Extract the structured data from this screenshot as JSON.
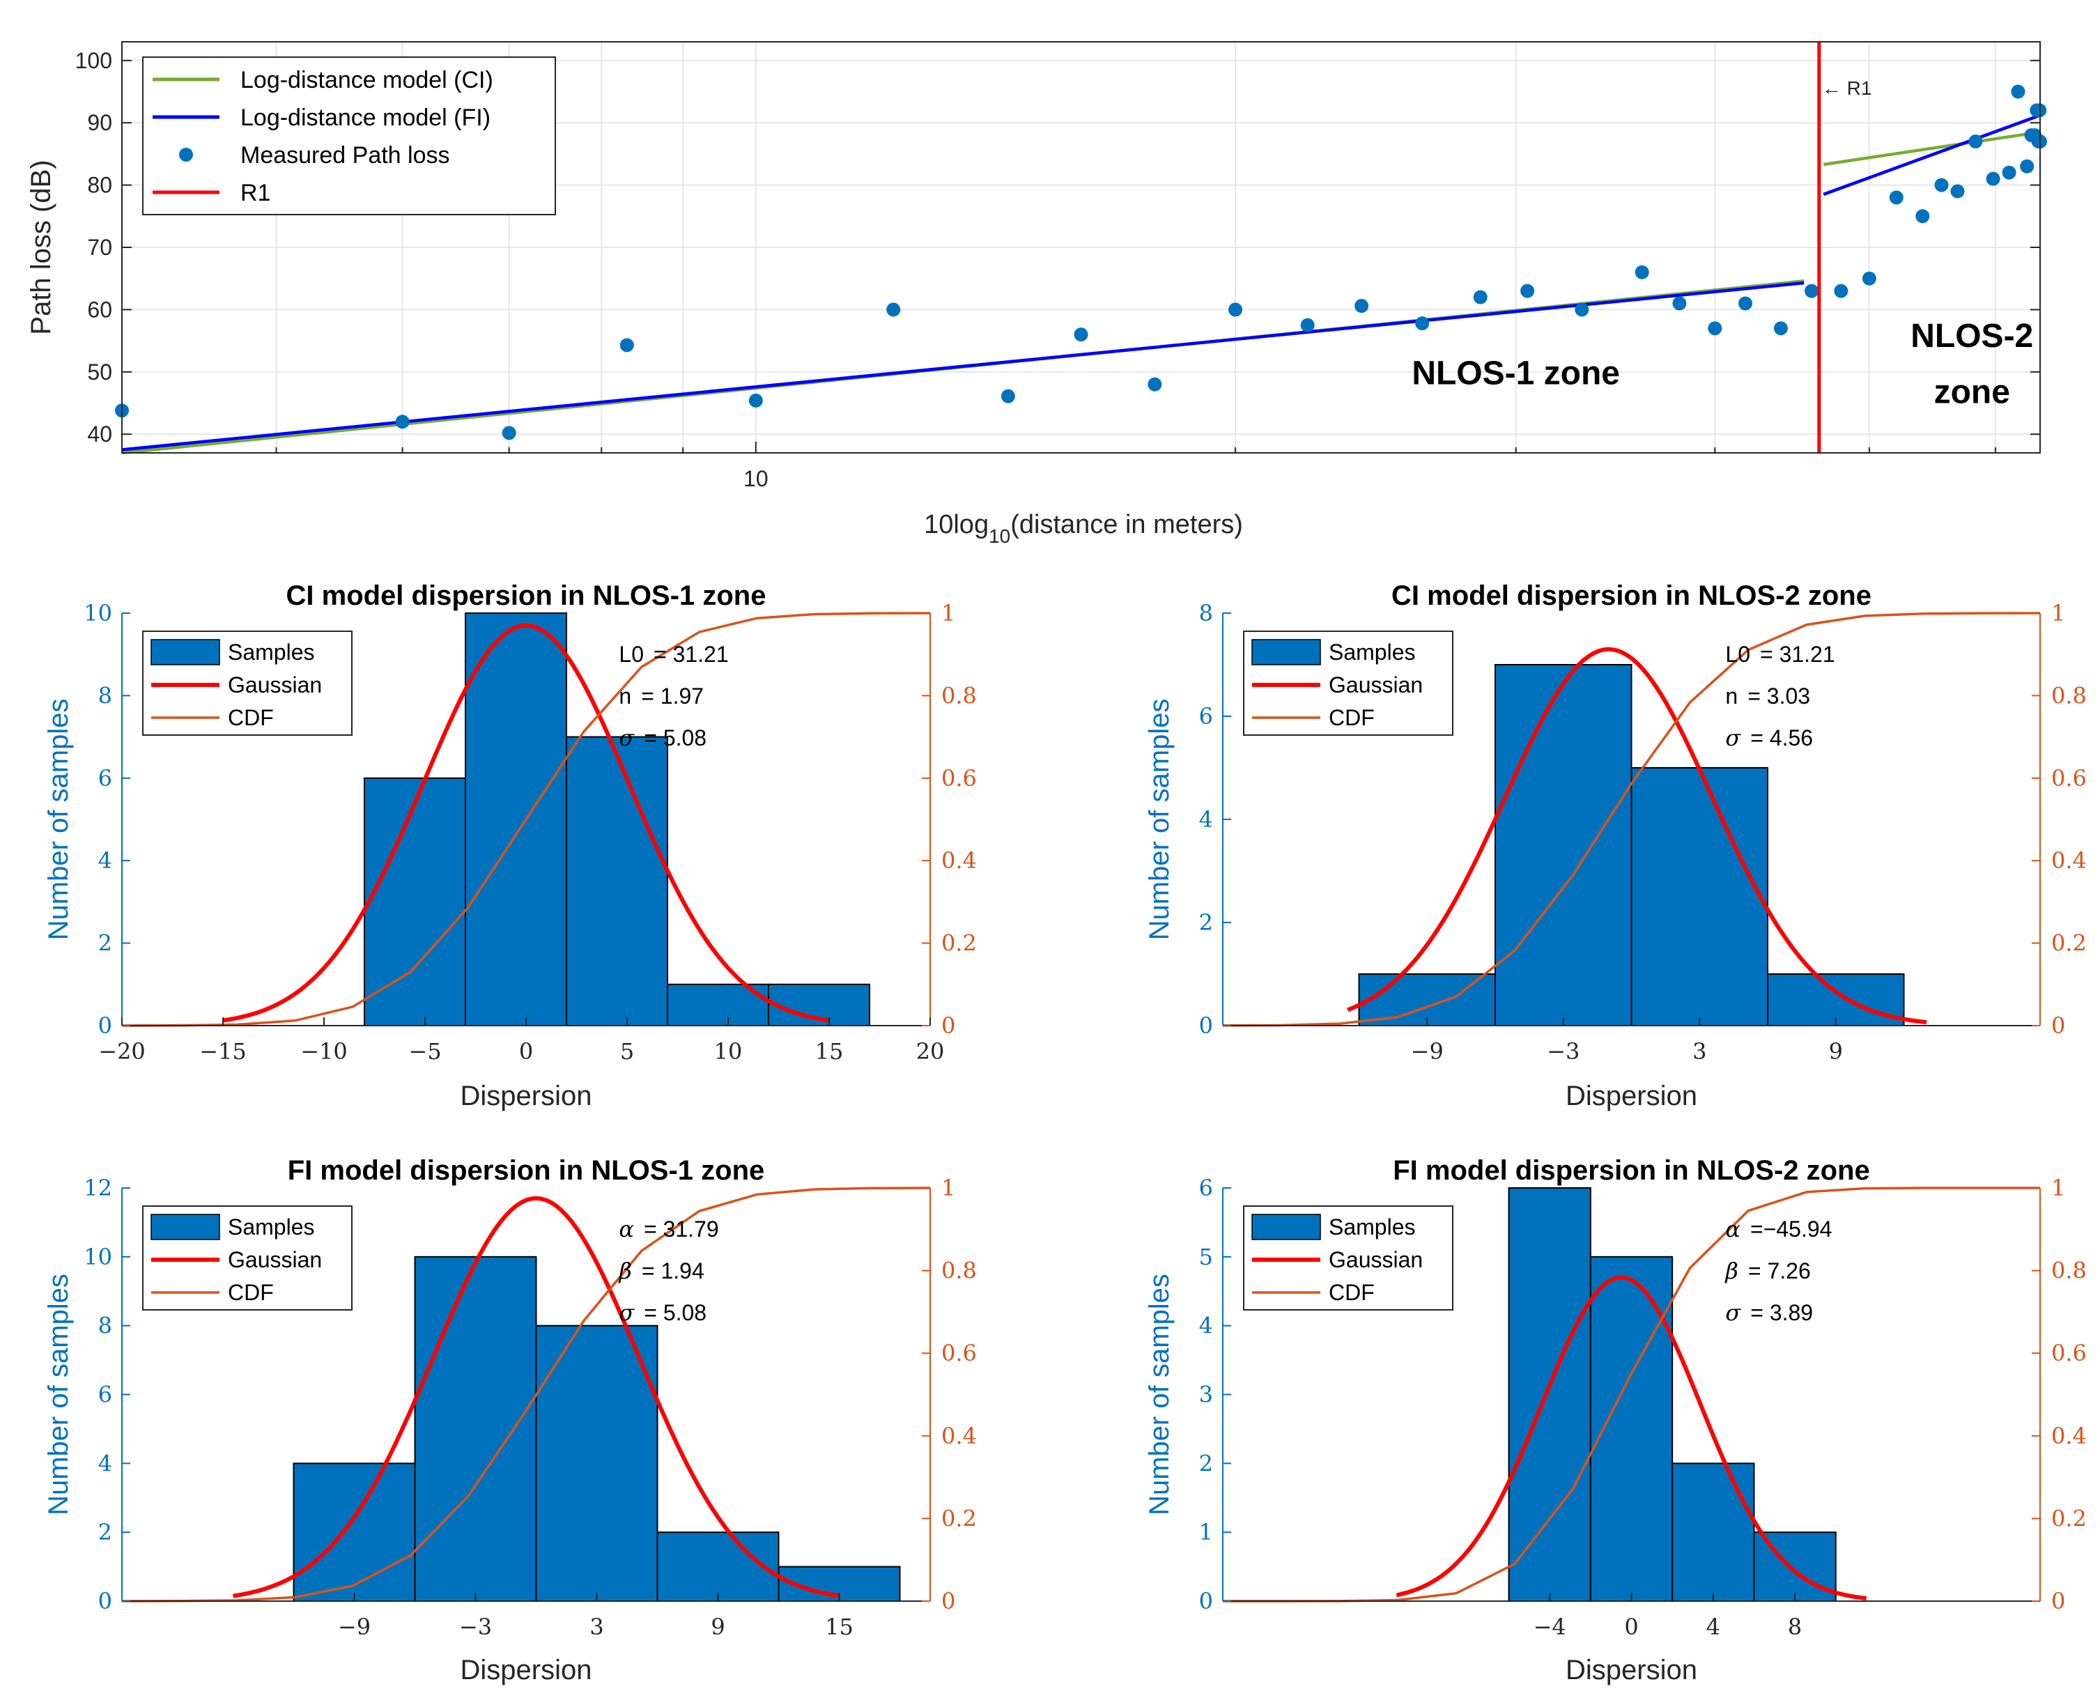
{
  "colors": {
    "ci": "#77AC30",
    "fi": "#0000FF",
    "measured": "#0072BD",
    "r1": "#FF0000",
    "bar": "#0072BD",
    "gauss": "#FF0000",
    "cdf": "#D95319",
    "grid": "#E6E6E6",
    "axis": "#262626"
  },
  "chart_data": [
    {
      "id": "pathloss",
      "type": "scatter",
      "title": "",
      "xlabel_prefix": "10log",
      "xlabel_sub": "10",
      "xlabel_suffix": "(distance in meters)",
      "ylabel": "Path loss (dB)",
      "xscale": "log",
      "xlim": [
        4.0,
        64.0
      ],
      "ylim": [
        37,
        103
      ],
      "xticks": [
        {
          "v": 10,
          "label": "10"
        }
      ],
      "xgrid_minor": [
        5,
        6,
        7,
        8,
        9,
        20,
        30,
        40,
        50,
        60
      ],
      "yticks": [
        40,
        50,
        60,
        70,
        80,
        90,
        100
      ],
      "grid": true,
      "legend": {
        "position": "top-left",
        "entries": [
          {
            "label": "Log-distance model (CI)",
            "kind": "line",
            "color": "ci"
          },
          {
            "label": "Log-distance model (FI)",
            "kind": "line",
            "color": "fi"
          },
          {
            "label": "Measured Path loss",
            "kind": "marker",
            "color": "measured"
          },
          {
            "label": "R1",
            "kind": "line",
            "color": "r1"
          }
        ]
      },
      "series": [
        {
          "name": "Log-distance model (CI)",
          "kind": "line",
          "color": "ci",
          "segments": [
            [
              [
                4.0,
                37.0
              ],
              [
                45.5,
                64.6
              ]
            ],
            [
              [
                46.8,
                83.3
              ],
              [
                64.0,
                88.5
              ]
            ]
          ]
        },
        {
          "name": "Log-distance model (FI)",
          "kind": "line",
          "color": "fi",
          "segments": [
            [
              [
                4.0,
                37.5
              ],
              [
                45.5,
                64.3
              ]
            ],
            [
              [
                46.8,
                78.5
              ],
              [
                64.0,
                91.2
              ]
            ]
          ]
        },
        {
          "name": "Measured Path loss",
          "kind": "scatter",
          "color": "measured",
          "points": [
            [
              4.0,
              43.8
            ],
            [
              6.0,
              42.0
            ],
            [
              7.0,
              40.2
            ],
            [
              8.3,
              54.3
            ],
            [
              10.0,
              45.4
            ],
            [
              12.2,
              60.0
            ],
            [
              14.4,
              46.1
            ],
            [
              16.0,
              56.0
            ],
            [
              17.8,
              48.0
            ],
            [
              20.0,
              60.0
            ],
            [
              22.2,
              57.5
            ],
            [
              24.0,
              60.6
            ],
            [
              26.2,
              57.8
            ],
            [
              28.5,
              62.0
            ],
            [
              30.5,
              63.0
            ],
            [
              33.0,
              60.0
            ],
            [
              36.0,
              66.0
            ],
            [
              38.0,
              61.0
            ],
            [
              40.0,
              57.0
            ],
            [
              41.8,
              61.0
            ],
            [
              44.0,
              57.0
            ],
            [
              46.0,
              63.0
            ],
            [
              48.0,
              63.0
            ],
            [
              50.0,
              65.0
            ],
            [
              52.0,
              78.0
            ],
            [
              54.0,
              75.0
            ],
            [
              55.5,
              80.0
            ],
            [
              56.8,
              79.0
            ],
            [
              58.3,
              87.0
            ],
            [
              59.8,
              81.0
            ],
            [
              61.2,
              82.0
            ],
            [
              62.0,
              95.0
            ],
            [
              62.8,
              83.0
            ],
            [
              63.2,
              88.0
            ],
            [
              63.5,
              88.0
            ],
            [
              63.7,
              92.0
            ],
            [
              63.85,
              87.0
            ],
            [
              63.95,
              92.0
            ],
            [
              64.0,
              87.0
            ]
          ]
        }
      ],
      "r1": {
        "x": 46.5,
        "label": "← R1"
      },
      "annotations": [
        {
          "text": "NLOS-1 zone",
          "x": 30.0,
          "y": 48
        },
        {
          "text": "NLOS-2",
          "x": 58.0,
          "y": 54
        },
        {
          "text": "zone",
          "x": 58.0,
          "y": 45
        }
      ]
    },
    {
      "id": "hist-ci-1",
      "type": "bar",
      "title": "CI model dispersion in NLOS-1 zone",
      "xlabel": "Dispersion",
      "ylabel": "Number of samples",
      "xlim": [
        -20,
        20
      ],
      "ylim_left": [
        0,
        10
      ],
      "ylim_right": [
        0,
        1
      ],
      "xticks": [
        -20,
        -15,
        -10,
        -5,
        0,
        5,
        10,
        15,
        20
      ],
      "xtick_labels": [
        "−20",
        "−15",
        "−10",
        "−5",
        "0",
        "5",
        "10",
        "15",
        "20"
      ],
      "yticks_left": [
        0,
        2,
        4,
        6,
        8,
        10
      ],
      "yticks_right": [
        0,
        0.2,
        0.4,
        0.6,
        0.8,
        1
      ],
      "bins": [
        [
          -8,
          -3
        ],
        [
          -3,
          2
        ],
        [
          2,
          7
        ],
        [
          7,
          12
        ],
        [
          12,
          17
        ]
      ],
      "counts": [
        6,
        10,
        7,
        1,
        1
      ],
      "gauss": {
        "mu": 0,
        "sigma": 5.08,
        "peak": 9.7,
        "range": [
          -15,
          15
        ]
      },
      "cdf": {
        "mu": 0,
        "sigma": 5.08,
        "range": [
          -20,
          20
        ]
      },
      "legend": [
        "Samples",
        "Gaussian",
        "CDF"
      ],
      "params": [
        {
          "name": "L0",
          "sym": false,
          "value": "= 31.21"
        },
        {
          "name": "n",
          "sym": false,
          "value": "=  1.97"
        },
        {
          "name": "σ",
          "sym": true,
          "value": "= 5.08"
        }
      ]
    },
    {
      "id": "hist-ci-2",
      "type": "bar",
      "title": "CI model dispersion in NLOS-2 zone",
      "xlabel": "Dispersion",
      "ylabel": "Number of samples",
      "xlim": [
        -18,
        18
      ],
      "ylim_left": [
        0,
        8
      ],
      "ylim_right": [
        0,
        1
      ],
      "xticks": [
        -9,
        -3,
        3,
        9
      ],
      "xtick_labels": [
        "−9",
        "−3",
        "3",
        "9"
      ],
      "yticks_left": [
        0,
        2,
        4,
        6,
        8
      ],
      "yticks_right": [
        0,
        0.2,
        0.4,
        0.6,
        0.8,
        1
      ],
      "bins": [
        [
          -12,
          -6
        ],
        [
          -6,
          0
        ],
        [
          0,
          6
        ],
        [
          6,
          12
        ]
      ],
      "counts": [
        1,
        7,
        5,
        1
      ],
      "gauss": {
        "mu": -1,
        "sigma": 4.56,
        "peak": 7.3,
        "range": [
          -12.5,
          13
        ]
      },
      "cdf": {
        "mu": -1,
        "sigma": 4.56,
        "range": [
          -18,
          18
        ]
      },
      "legend": [
        "Samples",
        "Gaussian",
        "CDF"
      ],
      "params": [
        {
          "name": "L0",
          "sym": false,
          "value": "= 31.21"
        },
        {
          "name": "n",
          "sym": false,
          "value": "=  3.03"
        },
        {
          "name": "σ",
          "sym": true,
          "value": "= 4.56"
        }
      ]
    },
    {
      "id": "hist-fi-1",
      "type": "bar",
      "title": "FI model dispersion in NLOS-1 zone",
      "xlabel": "Dispersion",
      "ylabel": "Number of samples",
      "xlim": [
        -20.5,
        19.5
      ],
      "ylim_left": [
        0,
        12
      ],
      "ylim_right": [
        0,
        1
      ],
      "xticks": [
        -9,
        -3,
        3,
        9,
        15
      ],
      "xtick_labels": [
        "−9",
        "−3",
        "3",
        "9",
        "15"
      ],
      "yticks_left": [
        0,
        2,
        4,
        6,
        8,
        10,
        12
      ],
      "yticks_right": [
        0,
        0.2,
        0.4,
        0.6,
        0.8,
        1
      ],
      "bins": [
        [
          -12,
          -6
        ],
        [
          -6,
          0
        ],
        [
          0,
          6
        ],
        [
          6,
          12
        ],
        [
          12,
          18
        ]
      ],
      "counts": [
        4,
        10,
        8,
        2,
        1
      ],
      "gauss": {
        "mu": 0,
        "sigma": 5.08,
        "peak": 11.7,
        "range": [
          -15,
          15
        ]
      },
      "cdf": {
        "mu": 0,
        "sigma": 5.08,
        "range": [
          -20.5,
          19.5
        ]
      },
      "legend": [
        "Samples",
        "Gaussian",
        "CDF"
      ],
      "params": [
        {
          "name": "α",
          "sym": true,
          "value": "= 31.79"
        },
        {
          "name": "β",
          "sym": true,
          "value": "=  1.94"
        },
        {
          "name": "σ",
          "sym": true,
          "value": "= 5.08"
        }
      ]
    },
    {
      "id": "hist-fi-2",
      "type": "bar",
      "title": "FI model dispersion in NLOS-2 zone",
      "xlabel": "Dispersion",
      "ylabel": "Number of samples",
      "xlim": [
        -20,
        20
      ],
      "ylim_left": [
        0,
        6
      ],
      "ylim_right": [
        0,
        1
      ],
      "xticks": [
        -4,
        0,
        4,
        8
      ],
      "xtick_labels": [
        "−4",
        "0",
        "4",
        "8"
      ],
      "yticks_left": [
        0,
        1,
        2,
        3,
        4,
        5,
        6
      ],
      "yticks_right": [
        0,
        0.2,
        0.4,
        0.6,
        0.8,
        1
      ],
      "bins": [
        [
          -6,
          -2
        ],
        [
          -2,
          2
        ],
        [
          2,
          6
        ],
        [
          6,
          10
        ]
      ],
      "counts": [
        6,
        5,
        2,
        1
      ],
      "gauss": {
        "mu": -0.5,
        "sigma": 3.89,
        "peak": 4.7,
        "range": [
          -11.5,
          11.5
        ]
      },
      "cdf": {
        "mu": -0.5,
        "sigma": 3.89,
        "range": [
          -20,
          20
        ]
      },
      "legend": [
        "Samples",
        "Gaussian",
        "CDF"
      ],
      "params": [
        {
          "name": "α",
          "sym": true,
          "value": "=−45.94"
        },
        {
          "name": "β",
          "sym": true,
          "value": "=  7.26"
        },
        {
          "name": "σ",
          "sym": true,
          "value": "= 3.89"
        }
      ]
    }
  ]
}
